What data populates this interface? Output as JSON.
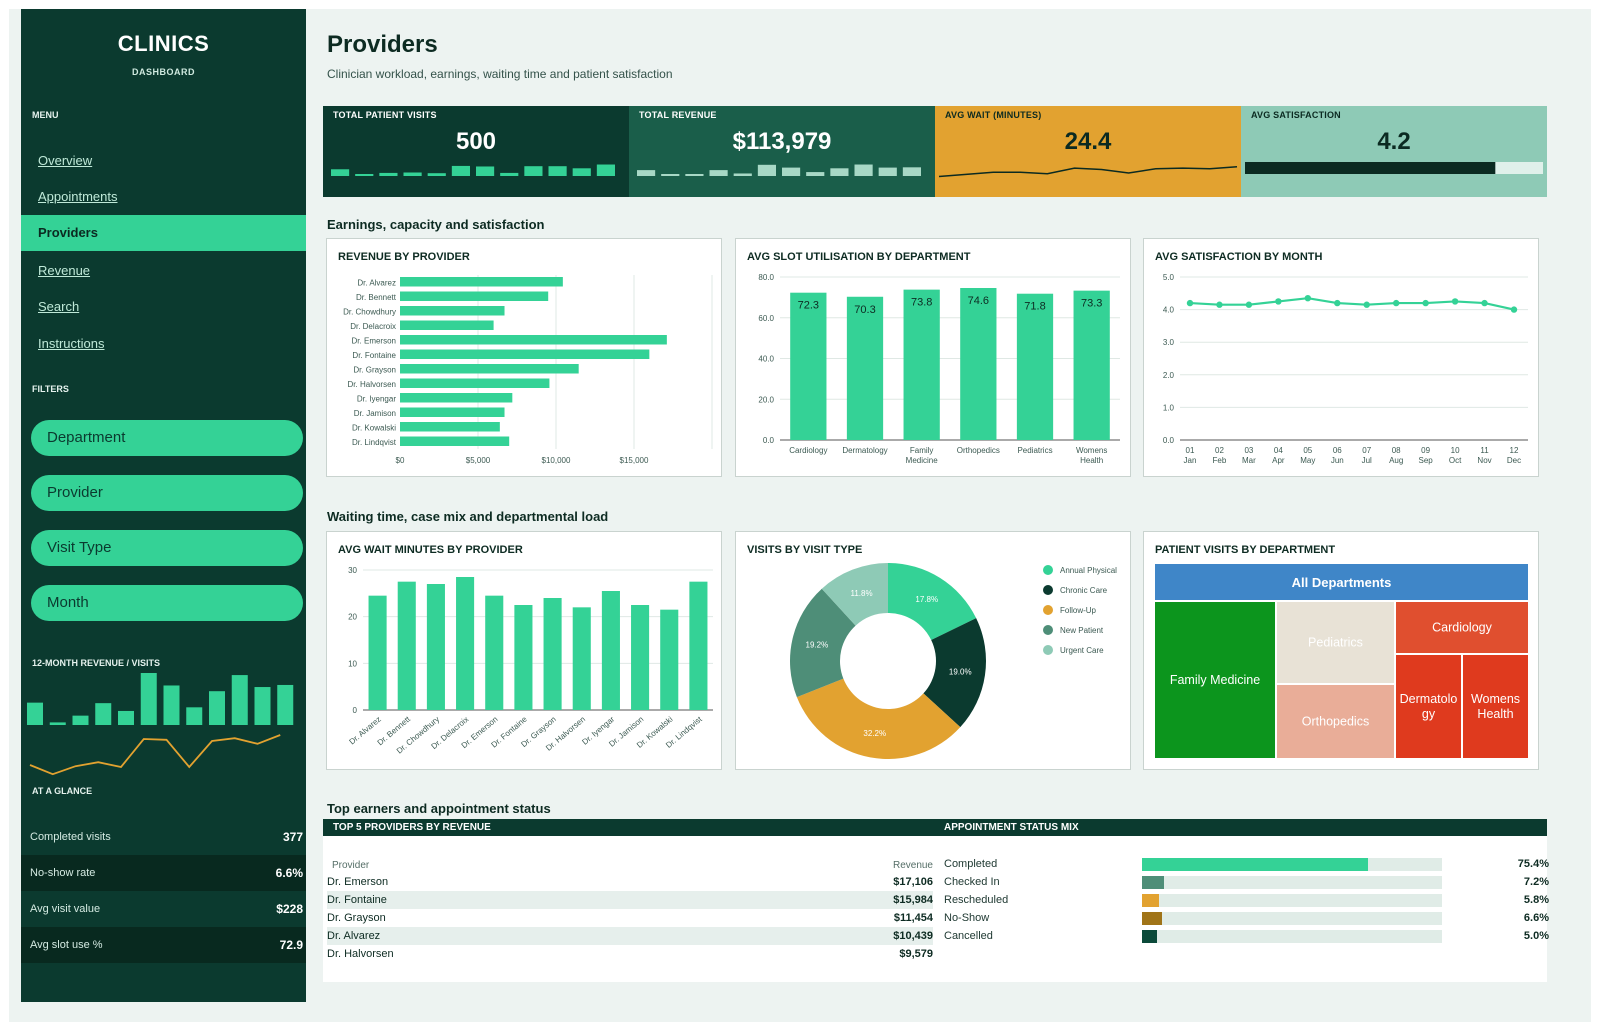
{
  "sidebar": {
    "brand": "CLINICS",
    "brand_sub": "DASHBOARD",
    "menu_label": "MENU",
    "nav": [
      "Overview",
      "Appointments",
      "Providers",
      "Revenue",
      "Search",
      "Instructions"
    ],
    "active_nav": "Providers",
    "filters_label": "FILTERS",
    "filters": [
      "Department",
      "Provider",
      "Visit Type",
      "Month"
    ],
    "spark_label": "12-MONTH REVENUE  /  VISITS",
    "spark_revenue_bars": [
      0.43,
      0.05,
      0.18,
      0.42,
      0.27,
      1.0,
      0.76,
      0.34,
      0.65,
      0.96,
      0.73,
      0.77
    ],
    "spark_visits_line": [
      0.25,
      0.02,
      0.22,
      0.32,
      0.2,
      0.9,
      0.88,
      0.2,
      0.85,
      0.92,
      0.78,
      1.0
    ],
    "glance_label": "AT A GLANCE",
    "glance": [
      {
        "label": "Completed visits",
        "value": "377"
      },
      {
        "label": "No-show rate",
        "value": "6.6%"
      },
      {
        "label": "Avg visit value",
        "value": "$228"
      },
      {
        "label": "Avg slot use %",
        "value": "72.9"
      }
    ]
  },
  "header": {
    "title": "Providers",
    "subtitle": "Clinician workload, earnings, waiting time and patient satisfaction"
  },
  "kpis": [
    {
      "label": "TOTAL PATIENT VISITS",
      "value": "500",
      "bg": "#0b3a2f",
      "fg": "#ffffff",
      "mark": "bars",
      "mark_color": "#34d296",
      "series": [
        0.48,
        0.08,
        0.22,
        0.25,
        0.2,
        0.72,
        0.68,
        0.22,
        0.7,
        0.7,
        0.55,
        0.82
      ]
    },
    {
      "label": "TOTAL REVENUE",
      "value": "$113,979",
      "bg": "#1a5e4a",
      "fg": "#ffffff",
      "mark": "bars",
      "mark_color": "#a8d8c6",
      "series": [
        0.42,
        0.06,
        0.12,
        0.42,
        0.18,
        0.8,
        0.6,
        0.28,
        0.55,
        0.82,
        0.6,
        0.62
      ]
    },
    {
      "label": "AVG WAIT (MINUTES)",
      "value": "24.4",
      "bg": "#e2a230",
      "fg": "#0b2a21",
      "mark": "line",
      "mark_color": "#0b2a21",
      "series": [
        0.25,
        0.4,
        0.55,
        0.55,
        0.45,
        0.85,
        0.75,
        0.5,
        0.8,
        0.85,
        0.8,
        0.95
      ]
    },
    {
      "label": "AVG SATISFACTION",
      "value": "4.2",
      "bg": "#8ecab6",
      "fg": "#0b2a21",
      "mark": "progress",
      "mark_color": "#0b2a21",
      "progress": 0.84
    }
  ],
  "sections": {
    "s1": "Earnings, capacity and satisfaction",
    "s2": "Waiting time, case mix and departmental load",
    "s3": "Top earners and appointment status"
  },
  "chart_data": [
    {
      "type": "bar",
      "orientation": "horizontal",
      "title": "REVENUE BY PROVIDER",
      "categories": [
        "Dr. Alvarez",
        "Dr. Bennett",
        "Dr. Chowdhury",
        "Dr. Delacroix",
        "Dr. Emerson",
        "Dr. Fontaine",
        "Dr. Grayson",
        "Dr. Halvorsen",
        "Dr. Iyengar",
        "Dr. Jamison",
        "Dr. Kowalski",
        "Dr. Lindqvist"
      ],
      "values": [
        10439,
        9500,
        6700,
        6000,
        17106,
        15984,
        11454,
        9579,
        7200,
        6700,
        6400,
        7000
      ],
      "xticks": [
        "$0",
        "$5,000",
        "$10,000",
        "$15,000"
      ],
      "xlim": [
        0,
        20000
      ],
      "color": "#34d296"
    },
    {
      "type": "bar",
      "title": "AVG SLOT UTILISATION BY DEPARTMENT",
      "categories": [
        "Cardiology",
        "Dermatology",
        "Family Medicine",
        "Orthopedics",
        "Pediatrics",
        "Womens Health"
      ],
      "values": [
        72.3,
        70.3,
        73.8,
        74.6,
        71.8,
        73.3
      ],
      "yticks": [
        "0.0",
        "20.0",
        "40.0",
        "60.0",
        "80.0"
      ],
      "ylim": [
        0,
        80
      ],
      "color": "#34d296"
    },
    {
      "type": "line",
      "title": "AVG SATISFACTION BY MONTH",
      "categories": [
        "01 Jan",
        "02 Feb",
        "03 Mar",
        "04 Apr",
        "05 May",
        "06 Jun",
        "07 Jul",
        "08 Aug",
        "09 Sep",
        "10 Oct",
        "11 Nov",
        "12 Dec"
      ],
      "values": [
        4.2,
        4.15,
        4.15,
        4.25,
        4.35,
        4.2,
        4.15,
        4.2,
        4.2,
        4.25,
        4.2,
        4.0
      ],
      "yticks": [
        "0.0",
        "1.0",
        "2.0",
        "3.0",
        "4.0",
        "5.0"
      ],
      "ylim": [
        0,
        5
      ],
      "color": "#34d296"
    },
    {
      "type": "bar",
      "title": "AVG WAIT MINUTES BY PROVIDER",
      "categories": [
        "Dr. Alvarez",
        "Dr. Bennett",
        "Dr. Chowdhury",
        "Dr. Delacroix",
        "Dr. Emerson",
        "Dr. Fontaine",
        "Dr. Grayson",
        "Dr. Halvorsen",
        "Dr. Iyengar",
        "Dr. Jamison",
        "Dr. Kowalski",
        "Dr. Lindqvist"
      ],
      "values": [
        24.5,
        27.5,
        27.0,
        28.5,
        24.5,
        22.5,
        24.0,
        22.0,
        25.5,
        22.5,
        21.5,
        27.5
      ],
      "yticks": [
        "0",
        "10",
        "20",
        "30"
      ],
      "ylim": [
        0,
        30
      ],
      "color": "#34d296"
    },
    {
      "type": "pie",
      "donut": true,
      "title": "VISITS BY VISIT TYPE",
      "slices": [
        {
          "name": "Annual Physical",
          "value": 17.8,
          "label": "17.8%",
          "color": "#34d296"
        },
        {
          "name": "Chronic Care",
          "value": 19.0,
          "label": "19.0%",
          "color": "#0b3a2f"
        },
        {
          "name": "Follow-Up",
          "value": 32.2,
          "label": "32.2%",
          "color": "#e2a230"
        },
        {
          "name": "New Patient",
          "value": 19.2,
          "label": "19.2%",
          "color": "#4e8e78"
        },
        {
          "name": "Urgent Care",
          "value": 11.8,
          "label": "11.8%",
          "color": "#8ecab6"
        }
      ]
    },
    {
      "type": "treemap",
      "title": "PATIENT VISITS BY DEPARTMENT",
      "root": "All Departments",
      "nodes": [
        {
          "name": "Family Medicine",
          "color": "#0c951d",
          "text": "#ffffff"
        },
        {
          "name": "Pediatrics",
          "color": "#e8e2d6",
          "text": "#ffffff"
        },
        {
          "name": "Orthopedics",
          "color": "#e9ad98",
          "text": "#ffffff"
        },
        {
          "name": "Cardiology",
          "color": "#e04f2f",
          "text": "#ffffff"
        },
        {
          "name": "Dermatology",
          "color": "#df3a1e",
          "text": "#ffffff"
        },
        {
          "name": "Womens Health",
          "color": "#df3a1e",
          "text": "#ffffff"
        }
      ]
    }
  ],
  "top5": {
    "title": "TOP 5 PROVIDERS BY REVENUE",
    "col_provider": "Provider",
    "col_revenue": "Revenue",
    "rows": [
      {
        "provider": "Dr. Emerson",
        "revenue": "$17,106"
      },
      {
        "provider": "Dr. Fontaine",
        "revenue": "$15,984"
      },
      {
        "provider": "Dr. Grayson",
        "revenue": "$11,454"
      },
      {
        "provider": "Dr. Alvarez",
        "revenue": "$10,439"
      },
      {
        "provider": "Dr. Halvorsen",
        "revenue": "$9,579"
      }
    ]
  },
  "status_mix": {
    "title": "APPOINTMENT STATUS MIX",
    "rows": [
      {
        "label": "Completed",
        "pct": "75.4%",
        "value": 75.4,
        "color": "#34d296"
      },
      {
        "label": "Checked In",
        "pct": "7.2%",
        "value": 7.2,
        "color": "#4e8e78"
      },
      {
        "label": "Rescheduled",
        "pct": "5.8%",
        "value": 5.8,
        "color": "#e2a230"
      },
      {
        "label": "No-Show",
        "pct": "6.6%",
        "value": 6.6,
        "color": "#a07418"
      },
      {
        "label": "Cancelled",
        "pct": "5.0%",
        "value": 5.0,
        "color": "#0b4a3a"
      }
    ]
  }
}
